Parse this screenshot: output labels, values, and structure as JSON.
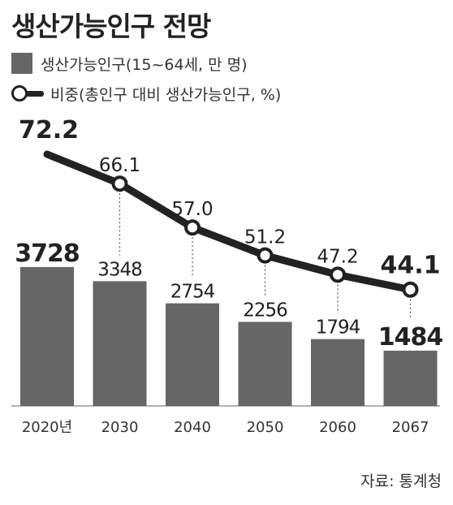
{
  "chart_data": {
    "type": "bar+line",
    "title": "생산가능인구 전망",
    "categories": [
      "2020년",
      "2030",
      "2040",
      "2050",
      "2060",
      "2067"
    ],
    "series": [
      {
        "name": "생산가능인구(15~64세, 만 명)",
        "type": "bar",
        "values": [
          3728,
          3348,
          2754,
          2256,
          1794,
          1484
        ],
        "color": "#666666"
      },
      {
        "name": "비중(총인구 대비 생산가능인구, %)",
        "type": "line",
        "values": [
          72.2,
          66.1,
          57.0,
          51.2,
          47.2,
          44.1
        ],
        "value_labels": [
          "72.2",
          "66.1",
          "57.0",
          "51.2",
          "47.2",
          "44.1"
        ],
        "color": "#222222"
      }
    ],
    "highlighted_labels": [
      "2020년",
      "2067"
    ],
    "grid": false,
    "legend_position": "top-left"
  },
  "source": "자료: 통계청"
}
